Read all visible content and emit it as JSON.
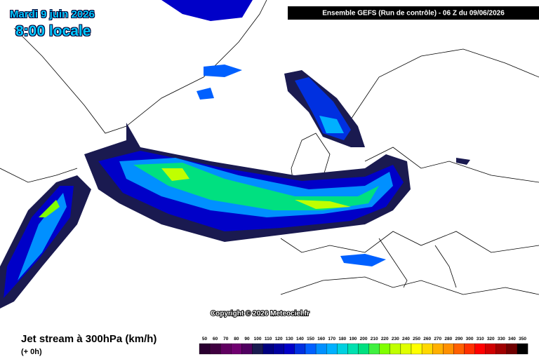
{
  "header": {
    "date": "Mardi 9 juin 2026",
    "time": "8:00 locale",
    "run": "Ensemble GEFS  (Run de contrôle)  -  06 Z du 09/06/2026"
  },
  "copyright": "Copyright © 2026 Meteociel.fr",
  "legend": {
    "title": "Jet stream à 300hPa (km/h)",
    "lead": "(+ 0h)",
    "labels": [
      50,
      60,
      70,
      80,
      90,
      100,
      110,
      120,
      130,
      140,
      150,
      160,
      170,
      180,
      190,
      200,
      210,
      220,
      230,
      240,
      250,
      260,
      270,
      280,
      290,
      300,
      310,
      320,
      330,
      340,
      350
    ],
    "colors": [
      "#2a0030",
      "#400040",
      "#600060",
      "#700070",
      "#500060",
      "#1a1a50",
      "#000080",
      "#0000a0",
      "#0000c8",
      "#0030e0",
      "#0060ff",
      "#0090ff",
      "#00b0ff",
      "#00d0e0",
      "#00e0b0",
      "#00e080",
      "#40f040",
      "#80ff00",
      "#c0ff00",
      "#e0ff00",
      "#ffff00",
      "#ffd800",
      "#ffb000",
      "#ff9000",
      "#ff6000",
      "#ff3000",
      "#ff0000",
      "#d00000",
      "#a00000",
      "#700000",
      "#000000"
    ]
  }
}
